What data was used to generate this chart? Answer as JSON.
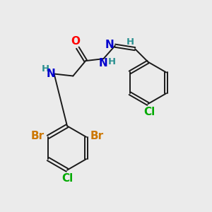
{
  "background_color": "#ebebeb",
  "bond_color": "#1a1a1a",
  "atom_colors": {
    "O": "#ff0000",
    "N": "#0000cd",
    "Cl": "#00aa00",
    "Br": "#cc7700",
    "H": "#2a9090",
    "C": "#1a1a1a"
  },
  "font_size_atoms": 11,
  "font_size_h": 9.5,
  "lw": 1.4
}
